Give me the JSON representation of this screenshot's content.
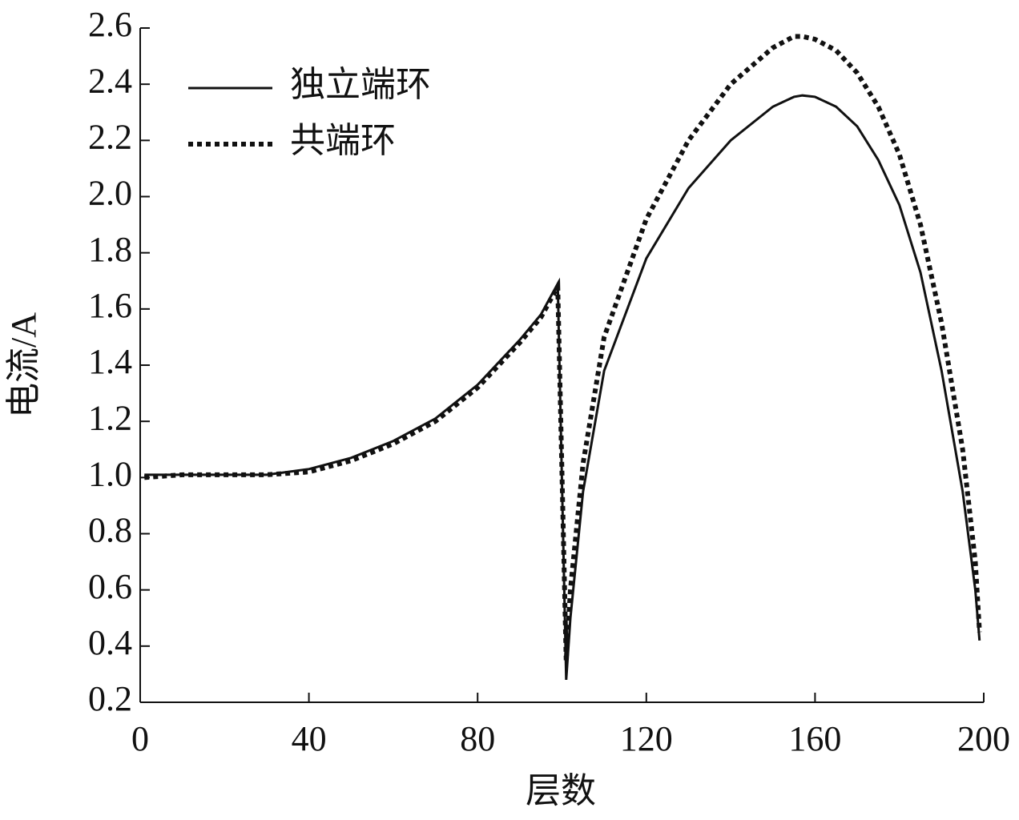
{
  "chart_data": {
    "type": "line",
    "x_label": "层数",
    "y_label": "电流/A",
    "x": [
      1,
      10,
      20,
      30,
      40,
      50,
      60,
      70,
      80,
      90,
      95,
      99,
      101,
      102,
      105,
      110,
      120,
      130,
      140,
      150,
      155,
      157,
      160,
      165,
      170,
      175,
      180,
      185,
      190,
      195,
      198,
      199
    ],
    "series": [
      {
        "name": "独立端环",
        "color": "#111111",
        "dash": "solid",
        "values": [
          1.01,
          1.01,
          1.01,
          1.01,
          1.03,
          1.07,
          1.13,
          1.21,
          1.33,
          1.49,
          1.58,
          1.69,
          0.28,
          0.5,
          0.95,
          1.38,
          1.78,
          2.03,
          2.2,
          2.32,
          2.355,
          2.36,
          2.355,
          2.32,
          2.25,
          2.13,
          1.97,
          1.73,
          1.38,
          0.95,
          0.6,
          0.42
        ]
      },
      {
        "name": "共端环",
        "color": "#111111",
        "dash": "dotted",
        "values": [
          1.0,
          1.01,
          1.01,
          1.01,
          1.02,
          1.06,
          1.12,
          1.2,
          1.32,
          1.48,
          1.57,
          1.68,
          0.35,
          0.6,
          1.05,
          1.5,
          1.92,
          2.2,
          2.4,
          2.53,
          2.57,
          2.57,
          2.56,
          2.52,
          2.44,
          2.32,
          2.15,
          1.9,
          1.55,
          1.1,
          0.7,
          0.45
        ]
      }
    ],
    "xlim": [
      0,
      200
    ],
    "xticks": [
      0,
      40,
      80,
      120,
      160,
      200
    ],
    "ylim": [
      0.2,
      2.6
    ],
    "yticks": [
      0.2,
      0.4,
      0.6,
      0.8,
      {
        "value": 1,
        "label": "1.0"
      },
      1.2,
      1.4,
      1.6,
      1.8,
      {
        "value": 2,
        "label": "2.0"
      },
      2.2,
      2.4,
      2.6
    ],
    "legend": "upper-left",
    "grid": false
  }
}
